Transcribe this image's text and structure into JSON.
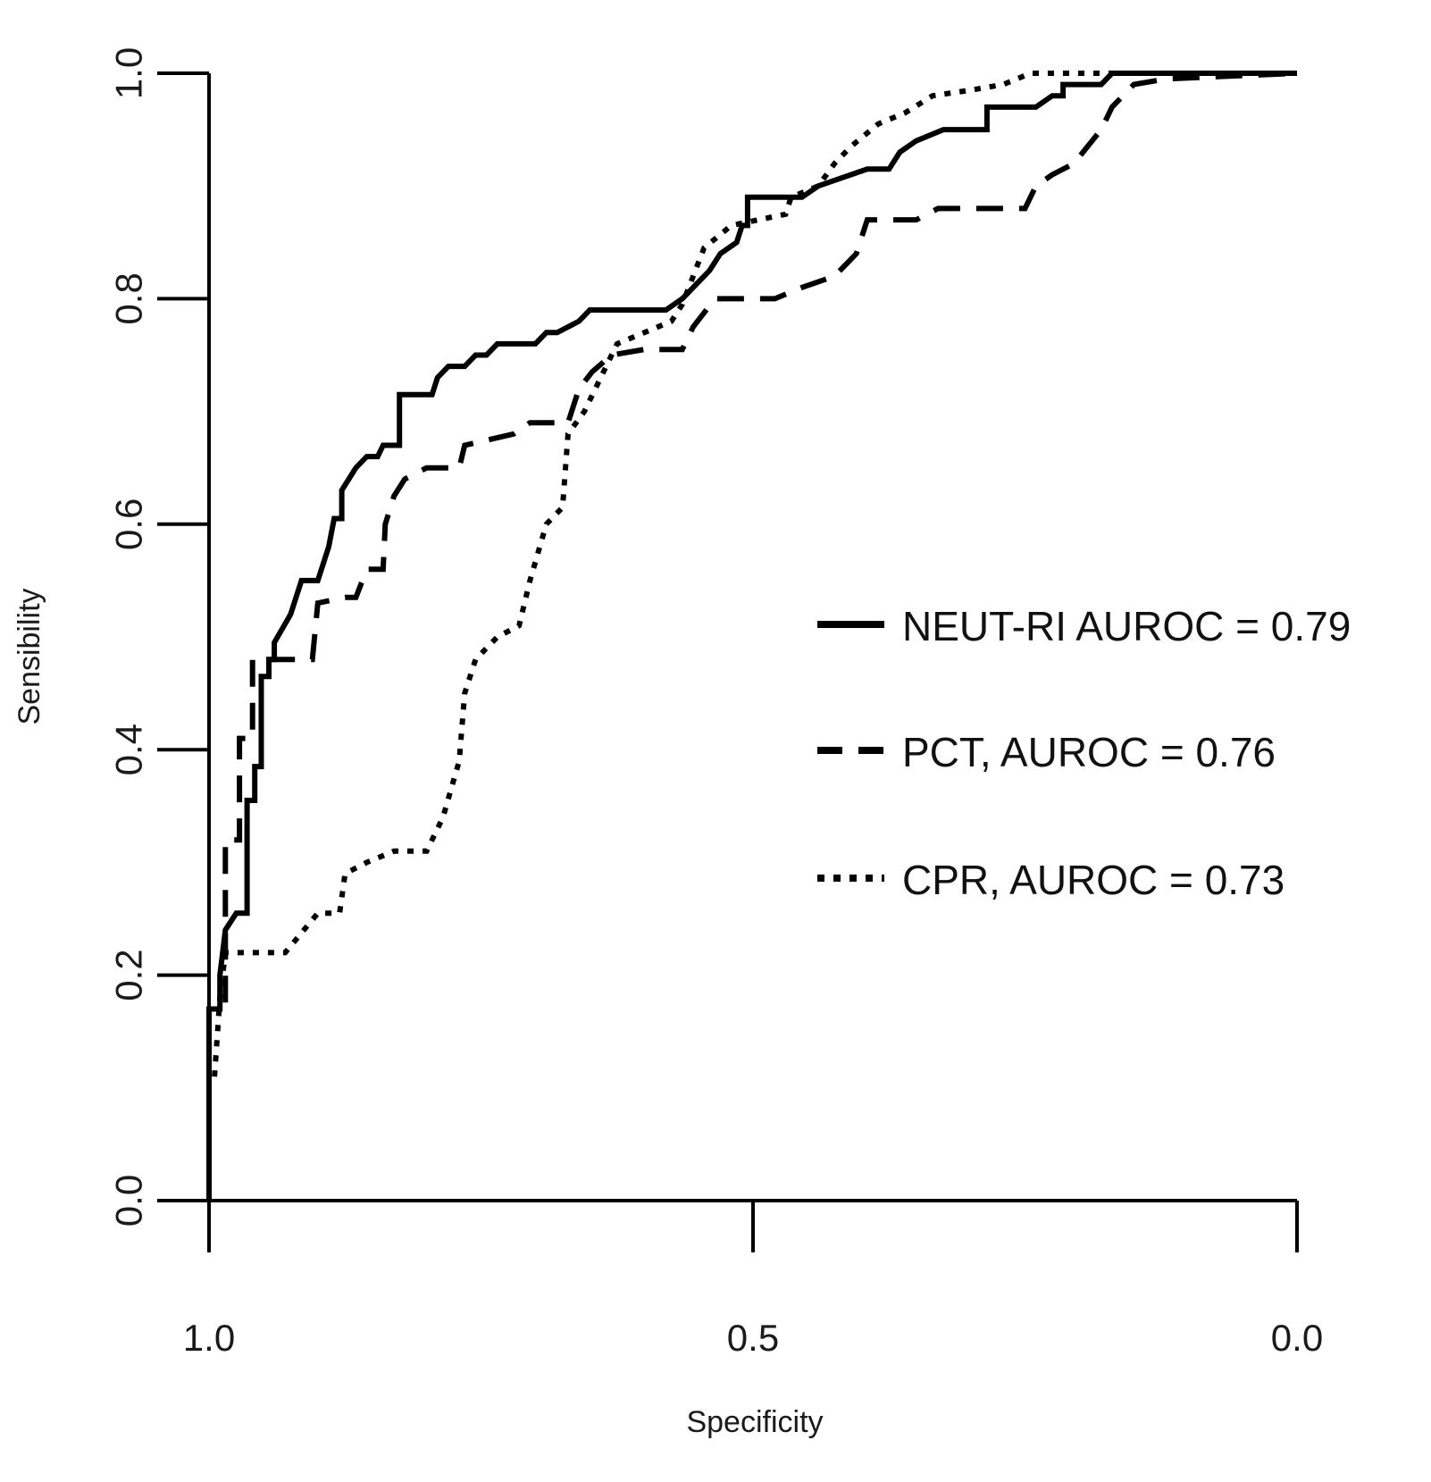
{
  "chart_data": {
    "type": "line",
    "title": "",
    "xlabel": "Specificity",
    "ylabel": "Sensibility",
    "xlim": [
      1.0,
      0.0
    ],
    "ylim": [
      0.0,
      1.0
    ],
    "x_reversed": true,
    "grid": false,
    "legend_position": "right-center",
    "x_ticks": [
      1.0,
      0.5,
      0.0
    ],
    "x_tick_labels": [
      "1.0",
      "0.5",
      "0.0"
    ],
    "y_ticks": [
      0.0,
      0.2,
      0.4,
      0.6,
      0.8,
      1.0
    ],
    "y_tick_labels": [
      "0.0",
      "0.2",
      "0.4",
      "0.6",
      "0.8",
      "1.0"
    ],
    "series": [
      {
        "name": "NEUT-RI AUROC = 0.79",
        "style": "solid",
        "color": "#000000",
        "points": [
          [
            1.0,
            0.0
          ],
          [
            1.0,
            0.17
          ],
          [
            0.99,
            0.17
          ],
          [
            0.99,
            0.2
          ],
          [
            0.985,
            0.24
          ],
          [
            0.975,
            0.255
          ],
          [
            0.965,
            0.255
          ],
          [
            0.965,
            0.355
          ],
          [
            0.958,
            0.355
          ],
          [
            0.958,
            0.385
          ],
          [
            0.952,
            0.385
          ],
          [
            0.952,
            0.465
          ],
          [
            0.945,
            0.465
          ],
          [
            0.945,
            0.48
          ],
          [
            0.94,
            0.48
          ],
          [
            0.94,
            0.495
          ],
          [
            0.925,
            0.52
          ],
          [
            0.915,
            0.55
          ],
          [
            0.9,
            0.55
          ],
          [
            0.89,
            0.58
          ],
          [
            0.885,
            0.605
          ],
          [
            0.878,
            0.605
          ],
          [
            0.878,
            0.63
          ],
          [
            0.865,
            0.65
          ],
          [
            0.855,
            0.66
          ],
          [
            0.845,
            0.66
          ],
          [
            0.84,
            0.67
          ],
          [
            0.825,
            0.67
          ],
          [
            0.825,
            0.715
          ],
          [
            0.795,
            0.715
          ],
          [
            0.79,
            0.73
          ],
          [
            0.78,
            0.74
          ],
          [
            0.765,
            0.74
          ],
          [
            0.755,
            0.75
          ],
          [
            0.745,
            0.75
          ],
          [
            0.735,
            0.76
          ],
          [
            0.7,
            0.76
          ],
          [
            0.69,
            0.77
          ],
          [
            0.68,
            0.77
          ],
          [
            0.66,
            0.78
          ],
          [
            0.65,
            0.79
          ],
          [
            0.58,
            0.79
          ],
          [
            0.565,
            0.8
          ],
          [
            0.55,
            0.815
          ],
          [
            0.54,
            0.825
          ],
          [
            0.53,
            0.84
          ],
          [
            0.515,
            0.85
          ],
          [
            0.51,
            0.865
          ],
          [
            0.505,
            0.865
          ],
          [
            0.505,
            0.89
          ],
          [
            0.455,
            0.89
          ],
          [
            0.44,
            0.9
          ],
          [
            0.395,
            0.915
          ],
          [
            0.375,
            0.915
          ],
          [
            0.365,
            0.93
          ],
          [
            0.35,
            0.94
          ],
          [
            0.325,
            0.95
          ],
          [
            0.285,
            0.95
          ],
          [
            0.285,
            0.97
          ],
          [
            0.24,
            0.97
          ],
          [
            0.225,
            0.98
          ],
          [
            0.215,
            0.98
          ],
          [
            0.215,
            0.99
          ],
          [
            0.18,
            0.99
          ],
          [
            0.17,
            1.0
          ],
          [
            0.0,
            1.0
          ]
        ]
      },
      {
        "name": "PCT, AUROC = 0.76",
        "style": "dashed",
        "color": "#000000",
        "points": [
          [
            1.0,
            0.0
          ],
          [
            1.0,
            0.17
          ],
          [
            0.985,
            0.17
          ],
          [
            0.985,
            0.32
          ],
          [
            0.972,
            0.32
          ],
          [
            0.972,
            0.41
          ],
          [
            0.96,
            0.41
          ],
          [
            0.96,
            0.48
          ],
          [
            0.905,
            0.48
          ],
          [
            0.9,
            0.53
          ],
          [
            0.875,
            0.535
          ],
          [
            0.865,
            0.535
          ],
          [
            0.855,
            0.56
          ],
          [
            0.84,
            0.56
          ],
          [
            0.838,
            0.6
          ],
          [
            0.83,
            0.625
          ],
          [
            0.82,
            0.64
          ],
          [
            0.8,
            0.65
          ],
          [
            0.77,
            0.65
          ],
          [
            0.765,
            0.67
          ],
          [
            0.72,
            0.68
          ],
          [
            0.705,
            0.69
          ],
          [
            0.67,
            0.69
          ],
          [
            0.66,
            0.72
          ],
          [
            0.648,
            0.735
          ],
          [
            0.63,
            0.75
          ],
          [
            0.6,
            0.755
          ],
          [
            0.565,
            0.755
          ],
          [
            0.555,
            0.775
          ],
          [
            0.535,
            0.8
          ],
          [
            0.48,
            0.8
          ],
          [
            0.455,
            0.81
          ],
          [
            0.425,
            0.82
          ],
          [
            0.405,
            0.84
          ],
          [
            0.395,
            0.87
          ],
          [
            0.35,
            0.87
          ],
          [
            0.33,
            0.88
          ],
          [
            0.25,
            0.88
          ],
          [
            0.24,
            0.9
          ],
          [
            0.225,
            0.91
          ],
          [
            0.205,
            0.92
          ],
          [
            0.18,
            0.95
          ],
          [
            0.17,
            0.97
          ],
          [
            0.15,
            0.99
          ],
          [
            0.12,
            0.995
          ],
          [
            0.0,
            1.0
          ]
        ]
      },
      {
        "name": "CPR, AUROC = 0.73",
        "style": "dotted",
        "color": "#000000",
        "points": [
          [
            0.995,
            0.11
          ],
          [
            0.99,
            0.18
          ],
          [
            0.985,
            0.22
          ],
          [
            0.93,
            0.22
          ],
          [
            0.9,
            0.255
          ],
          [
            0.88,
            0.255
          ],
          [
            0.875,
            0.29
          ],
          [
            0.855,
            0.3
          ],
          [
            0.83,
            0.31
          ],
          [
            0.8,
            0.31
          ],
          [
            0.785,
            0.34
          ],
          [
            0.77,
            0.39
          ],
          [
            0.765,
            0.45
          ],
          [
            0.755,
            0.48
          ],
          [
            0.735,
            0.5
          ],
          [
            0.715,
            0.51
          ],
          [
            0.705,
            0.55
          ],
          [
            0.69,
            0.6
          ],
          [
            0.675,
            0.615
          ],
          [
            0.67,
            0.68
          ],
          [
            0.655,
            0.7
          ],
          [
            0.64,
            0.73
          ],
          [
            0.625,
            0.76
          ],
          [
            0.6,
            0.77
          ],
          [
            0.575,
            0.78
          ],
          [
            0.565,
            0.795
          ],
          [
            0.555,
            0.82
          ],
          [
            0.545,
            0.845
          ],
          [
            0.52,
            0.865
          ],
          [
            0.47,
            0.875
          ],
          [
            0.465,
            0.89
          ],
          [
            0.44,
            0.9
          ],
          [
            0.425,
            0.92
          ],
          [
            0.41,
            0.935
          ],
          [
            0.385,
            0.955
          ],
          [
            0.36,
            0.965
          ],
          [
            0.335,
            0.98
          ],
          [
            0.3,
            0.985
          ],
          [
            0.27,
            0.99
          ],
          [
            0.245,
            1.0
          ],
          [
            0.0,
            1.0
          ]
        ]
      }
    ]
  }
}
